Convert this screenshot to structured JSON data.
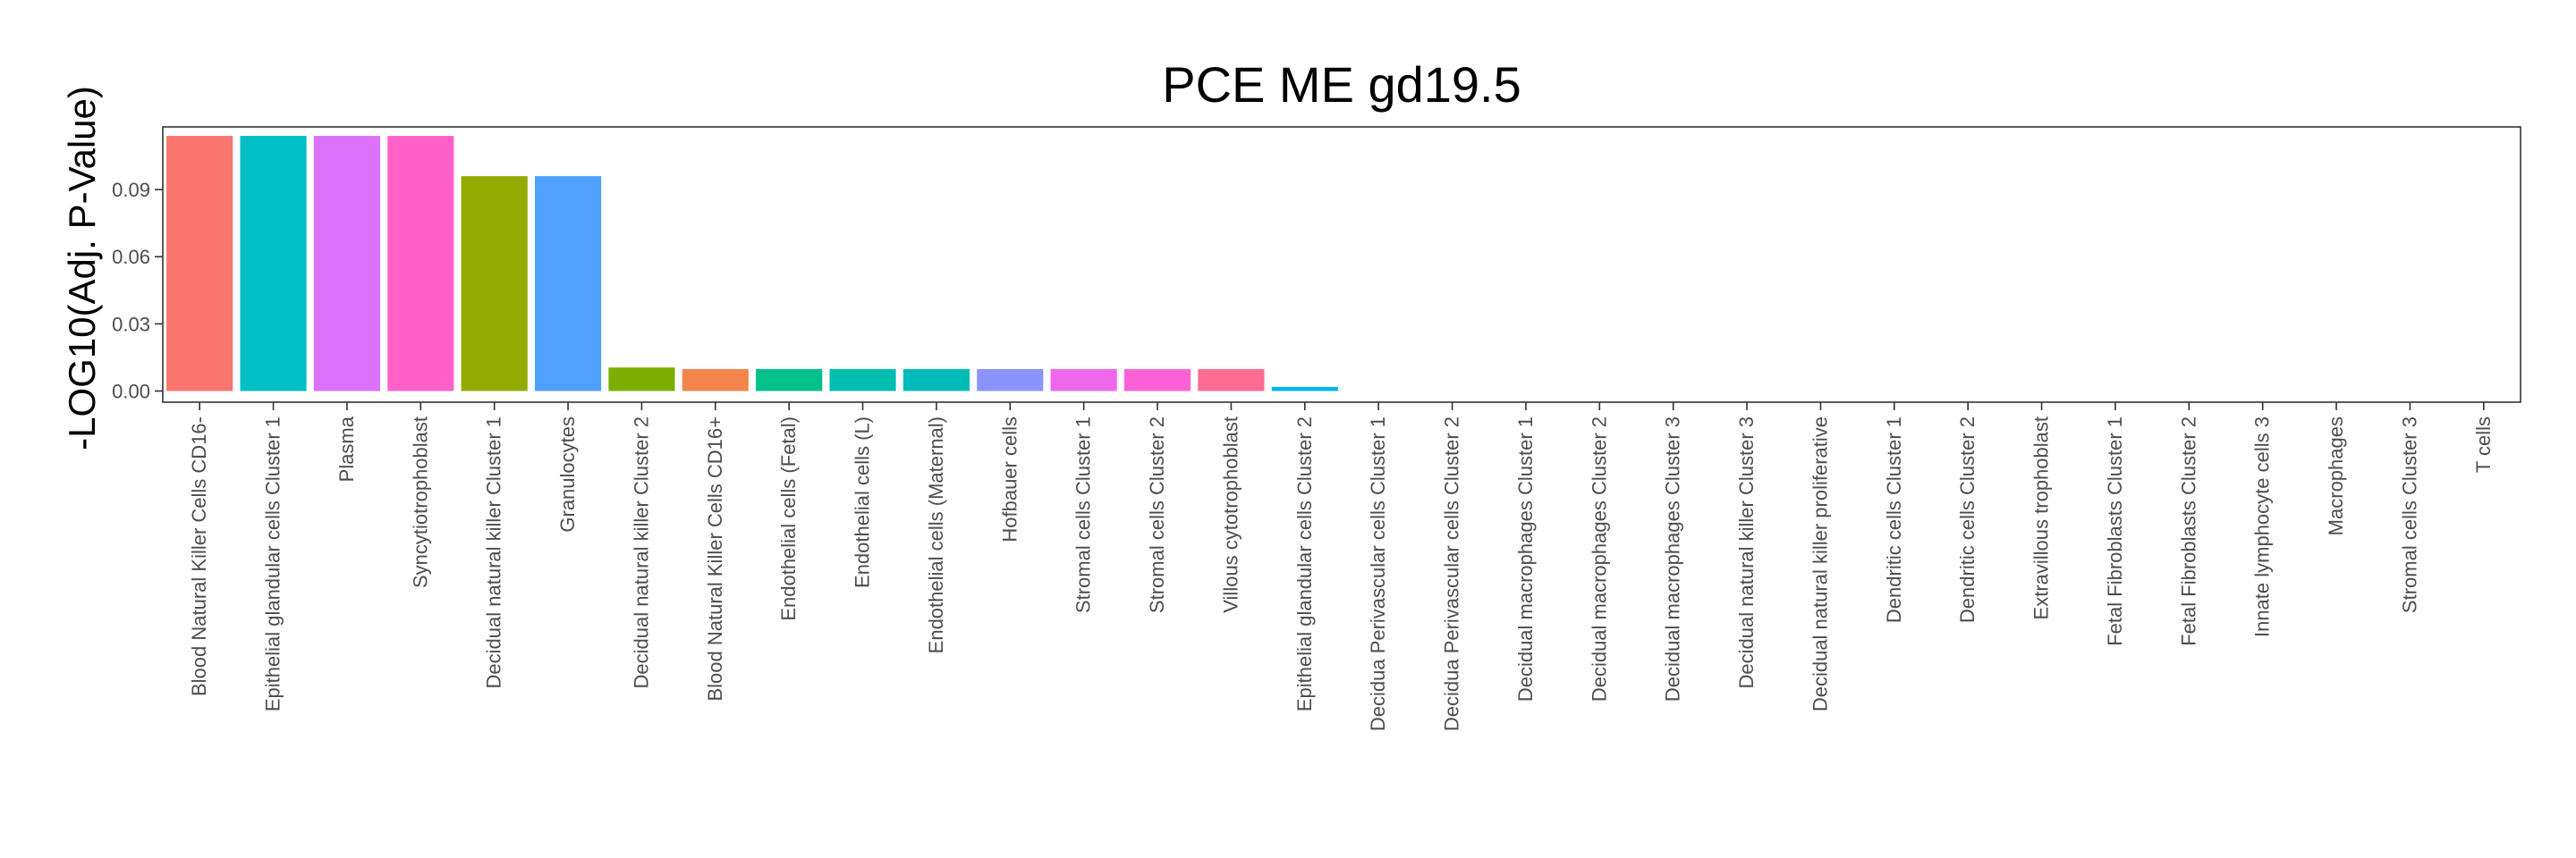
{
  "chart_data": {
    "type": "bar",
    "title": "PCE ME gd19.5",
    "ylabel": "-LOG10(Adj. P-Value)",
    "xlabel": "",
    "ylim": [
      -0.005,
      0.118
    ],
    "yticks": [
      0.0,
      0.03,
      0.06,
      0.09
    ],
    "ytick_labels": [
      "0.00",
      "0.03",
      "0.06",
      "0.09"
    ],
    "grid": false,
    "legend": "none",
    "categories": [
      "Blood Natural Killer Cells CD16-",
      "Epithelial glandular cells Cluster 1",
      "Plasma",
      "Syncytiotrophoblast",
      "Decidual natural killer Cluster 1",
      "Granulocytes",
      "Decidual natural killer Cluster 2",
      "Blood Natural Killer Cells CD16+",
      "Endothelial cells (Fetal)",
      "Endothelial cells (L)",
      "Endothelial cells (Maternal)",
      "Hofbauer cells",
      "Stromal cells Cluster 1",
      "Stromal cells Cluster 2",
      "Villous cytotrophoblast",
      "Epithelial glandular cells Cluster 2",
      "Decidua Perivascular cells Cluster 1",
      "Decidua Perivascular cells Cluster 2",
      "Decidual macrophages Cluster 1",
      "Decidual macrophages Cluster 2",
      "Decidual macrophages Cluster 3",
      "Decidual natural killer Cluster 3",
      "Decidual natural killer proliferative",
      "Dendritic cells Cluster 1",
      "Dendritic cells Cluster 2",
      "Extravillous trophoblast",
      "Fetal Fibroblasts Cluster 1",
      "Fetal Fibroblasts Cluster 2",
      "Innate lymphocyte cells 3",
      "Macrophages",
      "Stromal cells Cluster 3",
      "T cells"
    ],
    "values": [
      0.114,
      0.114,
      0.114,
      0.114,
      0.096,
      0.096,
      0.0105,
      0.0098,
      0.0098,
      0.0098,
      0.0098,
      0.0098,
      0.0098,
      0.0098,
      0.0098,
      0.0018,
      0,
      0,
      0,
      0,
      0,
      0,
      0,
      0,
      0,
      0,
      0,
      0,
      0,
      0,
      0,
      0
    ],
    "colors": [
      "#F8766D",
      "#00BFC4",
      "#DC71FA",
      "#FF61C9",
      "#93AA00",
      "#4FA0FF",
      "#7CAE00",
      "#F2854D",
      "#00C08B",
      "#00BFB0",
      "#00BBB8",
      "#8B93FF",
      "#EF67EB",
      "#FB61D7",
      "#FF6C91",
      "#00B4EF",
      "#F8766D",
      "#F8766D",
      "#F8766D",
      "#F8766D",
      "#F8766D",
      "#F8766D",
      "#F8766D",
      "#F8766D",
      "#F8766D",
      "#F8766D",
      "#F8766D",
      "#F8766D",
      "#F8766D",
      "#F8766D",
      "#F8766D",
      "#F8766D"
    ]
  }
}
